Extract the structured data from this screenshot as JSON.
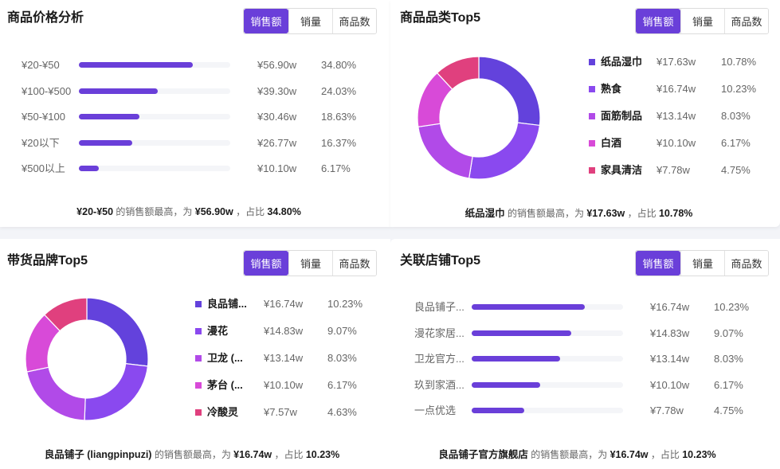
{
  "tabs": {
    "sales": "销售额",
    "volume": "销量",
    "count": "商品数"
  },
  "colors": {
    "accent": "#6a3fd9",
    "track": "#f4f5f8",
    "slice": [
      "#6342dc",
      "#8a49ef",
      "#b14ae8",
      "#d84ad8",
      "#e0407e"
    ]
  },
  "price_analysis": {
    "title": "商品价格分析",
    "active_tab": "销售额",
    "rows": [
      {
        "label": "¥20-¥50",
        "value": "¥56.90w",
        "pct": "34.80%",
        "ratio": 0.752
      },
      {
        "label": "¥100-¥500",
        "value": "¥39.30w",
        "pct": "24.03%",
        "ratio": 0.52
      },
      {
        "label": "¥50-¥100",
        "value": "¥30.46w",
        "pct": "18.63%",
        "ratio": 0.4
      },
      {
        "label": "¥20以下",
        "value": "¥26.77w",
        "pct": "16.37%",
        "ratio": 0.35
      },
      {
        "label": "¥500以上",
        "value": "¥10.10w",
        "pct": "6.17%",
        "ratio": 0.13
      }
    ],
    "summary": {
      "name": "¥20-¥50",
      "mid": "的销售额最高，为",
      "value": "¥56.90w",
      "sep": "，占比",
      "pct": "34.80%"
    }
  },
  "category_top5": {
    "title": "商品品类Top5",
    "active_tab": "销售额",
    "items": [
      {
        "name": "纸品湿巾",
        "value": "¥17.63w",
        "pct": "10.78%",
        "amount": 17.63
      },
      {
        "name": "熟食",
        "value": "¥16.74w",
        "pct": "10.23%",
        "amount": 16.74
      },
      {
        "name": "面筋制品",
        "value": "¥13.14w",
        "pct": "8.03%",
        "amount": 13.14
      },
      {
        "name": "白酒",
        "value": "¥10.10w",
        "pct": "6.17%",
        "amount": 10.1
      },
      {
        "name": "家具清洁",
        "value": "¥7.78w",
        "pct": "4.75%",
        "amount": 7.78
      }
    ],
    "summary": {
      "name": "纸品湿巾",
      "mid": "的销售额最高，为",
      "value": "¥17.63w",
      "sep": "，占比",
      "pct": "10.78%"
    }
  },
  "brand_top5": {
    "title": "带货品牌Top5",
    "active_tab": "销售额",
    "items": [
      {
        "name": "良品铺...",
        "value": "¥16.74w",
        "pct": "10.23%",
        "amount": 16.74
      },
      {
        "name": "漫花",
        "value": "¥14.83w",
        "pct": "9.07%",
        "amount": 14.83
      },
      {
        "name": "卫龙 (...",
        "value": "¥13.14w",
        "pct": "8.03%",
        "amount": 13.14
      },
      {
        "name": "茅台 (...",
        "value": "¥10.10w",
        "pct": "6.17%",
        "amount": 10.1
      },
      {
        "name": "冷酸灵",
        "value": "¥7.57w",
        "pct": "4.63%",
        "amount": 7.57
      }
    ],
    "summary": {
      "name": "良品铺子 (liangpinpuzi)",
      "mid": "的销售额最高，为",
      "value": "¥16.74w",
      "sep": "，占比",
      "pct": "10.23%"
    }
  },
  "store_top5": {
    "title": "关联店铺Top5",
    "active_tab": "销售额",
    "rows": [
      {
        "label": "良品铺子...",
        "value": "¥16.74w",
        "pct": "10.23%",
        "ratio": 0.745
      },
      {
        "label": "漫花家居...",
        "value": "¥14.83w",
        "pct": "9.07%",
        "ratio": 0.66
      },
      {
        "label": "卫龙官方...",
        "value": "¥13.14w",
        "pct": "8.03%",
        "ratio": 0.585
      },
      {
        "label": "玖到家酒...",
        "value": "¥10.10w",
        "pct": "6.17%",
        "ratio": 0.45
      },
      {
        "label": "一点优选",
        "value": "¥7.78w",
        "pct": "4.75%",
        "ratio": 0.345
      }
    ],
    "summary": {
      "name": "良品铺子官方旗舰店",
      "mid": "的销售额最高，为",
      "value": "¥16.74w",
      "sep": "，占比",
      "pct": "10.23%"
    }
  }
}
